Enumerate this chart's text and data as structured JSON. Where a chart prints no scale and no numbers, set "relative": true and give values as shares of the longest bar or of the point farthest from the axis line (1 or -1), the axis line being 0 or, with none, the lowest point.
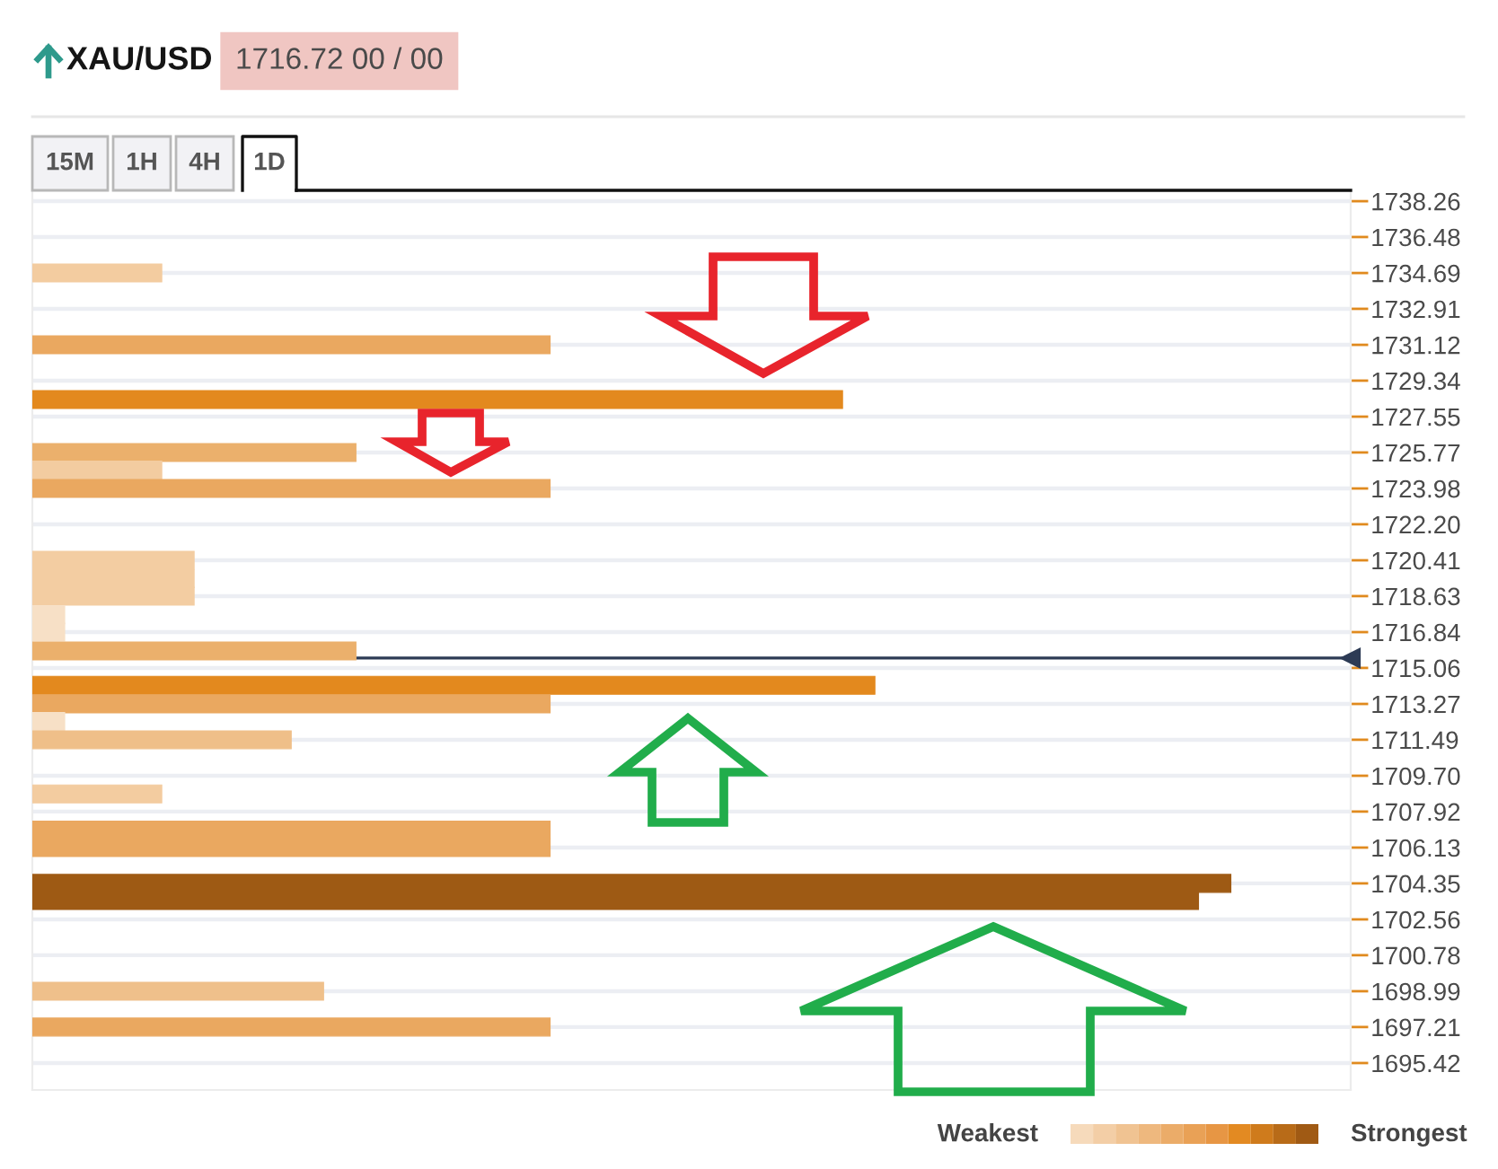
{
  "chart_data": {
    "type": "bar",
    "orientation": "horizontal",
    "relative": true,
    "title": "XAU/USD",
    "subtitle": "1716.72 00 / 00",
    "x": [
      1734.69,
      1731.12,
      1728.4,
      1725.77,
      1724.9,
      1723.98,
      1720.41,
      1719.5,
      1718.63,
      1717.7,
      1716.84,
      1715.9,
      1714.2,
      1713.27,
      1712.4,
      1711.49,
      1708.8,
      1707.0,
      1706.13,
      1704.35,
      1703.5,
      1698.99,
      1697.21
    ],
    "values": [
      0.108,
      0.432,
      0.676,
      0.27,
      0.108,
      0.432,
      0.135,
      0.135,
      0.135,
      0.027,
      0.027,
      0.27,
      0.703,
      0.432,
      0.027,
      0.216,
      0.108,
      0.432,
      0.432,
      1,
      0.973,
      0.243,
      0.432
    ],
    "colors": [
      "#f3cca0",
      "#eaa860",
      "#e3891e",
      "#ebb06c",
      "#f3cca0",
      "#eaa860",
      "#f3cda2",
      "#f3cda2",
      "#f3cda2",
      "#f7e0c6",
      "#f7e0c6",
      "#ebb06c",
      "#e3891e",
      "#eaa860",
      "#f7e0c6",
      "#efbf89",
      "#f3cca0",
      "#eaa860",
      "#eaa860",
      "#9e5a14",
      "#9e5a14",
      "#efc08b",
      "#eaa860"
    ],
    "ylim": [
      1694.08,
      1738.71
    ],
    "yticks": [
      1738.26,
      1736.48,
      1734.69,
      1732.91,
      1731.12,
      1729.34,
      1727.55,
      1725.77,
      1723.98,
      {
        "value": 1722.2,
        "label": "1722.20"
      },
      1720.41,
      1718.63,
      1716.84,
      1715.06,
      1713.27,
      1711.49,
      {
        "value": 1709.7,
        "label": "1709.70"
      },
      1707.92,
      1706.13,
      1704.35,
      1702.56,
      1700.78,
      1698.99,
      1697.21,
      1695.42
    ],
    "grid": "y",
    "ref_lines": [
      {
        "axis": "y",
        "value": 1715.55,
        "color": "#2d3b55"
      }
    ],
    "annotations": [
      "15M",
      "1H",
      "4H",
      "1D",
      "Weakest",
      "Strongest"
    ]
  }
}
